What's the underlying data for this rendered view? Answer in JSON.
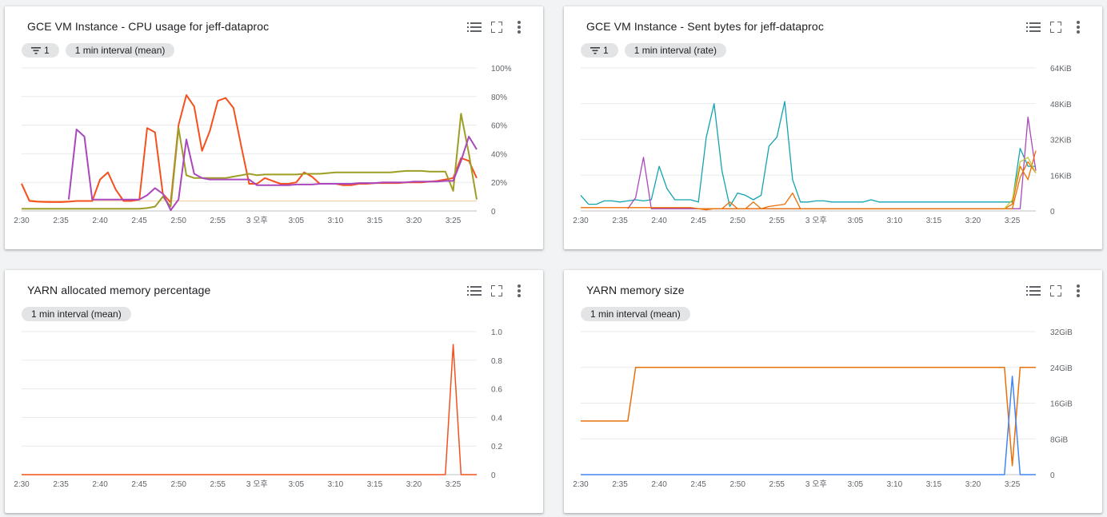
{
  "chart_data": [
    {
      "type": "line",
      "title": "GCE VM Instance - CPU usage for jeff-dataproc",
      "chips": [
        {
          "kind": "filter",
          "label": "1",
          "icon": "filter-icon"
        },
        {
          "kind": "interval",
          "label": "1 min interval (mean)"
        }
      ],
      "x_ticks": [
        "2:30",
        "2:35",
        "2:40",
        "2:45",
        "2:50",
        "2:55",
        "3 오후",
        "3:05",
        "3:10",
        "3:15",
        "3:20",
        "3:25"
      ],
      "y_ticks": [
        "0",
        "20%",
        "40%",
        "60%",
        "80%",
        "100%"
      ],
      "ylim": [
        0,
        100
      ],
      "x_unit": "minutes after 2:30",
      "grid": true,
      "series": [
        {
          "color": "#f5cfa7",
          "width": 1,
          "x": [
            30,
            31,
            32,
            33,
            34,
            35,
            36,
            37,
            38,
            39,
            40,
            41,
            42,
            43,
            44,
            45,
            46,
            47,
            48,
            49,
            50,
            51,
            52,
            53,
            54,
            55,
            56,
            57,
            58,
            59,
            60,
            61,
            62,
            63,
            64,
            65,
            66,
            67,
            68,
            69,
            70,
            71,
            72,
            73,
            74,
            75,
            76,
            77,
            78,
            79,
            80,
            81,
            82,
            83,
            84,
            85,
            86,
            87,
            88
          ],
          "y": [
            20,
            8,
            7,
            7,
            7,
            7,
            7,
            7,
            7,
            7,
            7,
            7,
            7,
            7,
            7,
            7,
            7,
            7,
            7,
            7,
            7,
            7,
            7,
            7,
            7,
            7,
            7,
            7,
            7,
            7,
            7,
            7,
            7,
            7,
            7,
            7,
            7,
            7,
            7,
            7,
            7,
            7,
            7,
            7,
            7,
            7,
            7,
            7,
            7,
            7,
            7,
            7,
            7,
            7,
            7,
            7,
            7,
            7,
            7
          ],
          "note": "faint"
        },
        {
          "color": "#f4511e",
          "width": 2,
          "x": [
            30,
            31,
            32,
            33,
            34,
            35,
            36,
            37,
            38,
            39,
            40,
            41,
            42,
            43,
            44,
            45,
            46,
            47,
            48,
            49,
            50,
            51,
            52,
            53,
            54,
            55,
            56,
            57,
            58,
            59,
            60,
            61,
            62,
            63,
            64,
            65,
            66,
            67,
            68,
            69,
            70,
            71,
            72,
            73,
            74,
            75,
            76,
            77,
            78,
            79,
            80,
            81,
            82,
            83,
            84,
            85,
            86,
            87,
            88
          ],
          "y": [
            19,
            7,
            6.5,
            6.3,
            6.2,
            6.2,
            6.5,
            7,
            7,
            7,
            22,
            27,
            15,
            7,
            7,
            8,
            58,
            55,
            12,
            6,
            60,
            81,
            73,
            42,
            56,
            77,
            79,
            72,
            45,
            19,
            19,
            23,
            21,
            19,
            19,
            20,
            27,
            24,
            19,
            19,
            19,
            18,
            18,
            19,
            19,
            19.5,
            19.5,
            19.5,
            19.5,
            20,
            20,
            20,
            20.5,
            21,
            22,
            23,
            37,
            35,
            23
          ]
        },
        {
          "color": "#9e9d24",
          "width": 2,
          "x": [
            30,
            31,
            32,
            33,
            34,
            35,
            36,
            37,
            38,
            39,
            40,
            41,
            42,
            43,
            44,
            45,
            46,
            47,
            48,
            49,
            50,
            51,
            52,
            53,
            54,
            55,
            56,
            57,
            58,
            59,
            60,
            61,
            62,
            63,
            64,
            65,
            66,
            67,
            68,
            69,
            70,
            71,
            72,
            73,
            74,
            75,
            76,
            77,
            78,
            79,
            80,
            81,
            82,
            83,
            84,
            85,
            86,
            87,
            88
          ],
          "y": [
            1.5,
            1.5,
            1.5,
            1.5,
            1.5,
            1.5,
            1.5,
            1.5,
            1.5,
            1.5,
            1.5,
            1.5,
            1.5,
            1.5,
            1.5,
            1.5,
            2,
            3,
            10,
            3,
            58,
            25,
            23,
            23,
            23,
            23,
            23,
            24,
            25,
            26,
            25,
            25.5,
            25.5,
            25.5,
            25.5,
            25.5,
            26,
            26,
            26,
            26.5,
            27,
            27,
            27,
            27,
            27,
            27,
            27,
            27,
            27.5,
            28,
            28,
            28,
            27.5,
            27.5,
            27.5,
            14,
            68,
            40,
            8
          ]
        },
        {
          "color": "#ab47bc",
          "width": 2,
          "x": [
            36,
            37,
            38,
            39,
            40,
            41,
            42,
            43,
            44,
            45,
            46,
            47,
            48,
            49,
            50,
            51,
            52,
            53,
            54,
            55,
            56,
            57,
            58,
            59,
            60,
            61,
            62,
            63,
            64,
            65,
            66,
            67,
            68,
            69,
            70,
            71,
            72,
            73,
            74,
            75,
            76,
            77,
            78,
            79,
            80,
            81,
            82,
            83,
            84,
            85,
            86,
            87,
            88
          ],
          "y": [
            8,
            57,
            52,
            8,
            8,
            8,
            8,
            8,
            8,
            8,
            11,
            16,
            12,
            0.5,
            8,
            50,
            26,
            23,
            22,
            22,
            22,
            22,
            22,
            22,
            18,
            18,
            18,
            18,
            18,
            18.5,
            18.5,
            18.5,
            19,
            19,
            19,
            19,
            19,
            19.5,
            19.5,
            19.5,
            20,
            20,
            20,
            20,
            20.5,
            20.5,
            20.5,
            20.5,
            21,
            21,
            35,
            52,
            43
          ]
        }
      ]
    },
    {
      "type": "line",
      "title": "GCE VM Instance - Sent bytes for jeff-dataproc",
      "chips": [
        {
          "kind": "filter",
          "label": "1",
          "icon": "filter-icon"
        },
        {
          "kind": "interval",
          "label": "1 min interval (rate)"
        }
      ],
      "x_ticks": [
        "2:30",
        "2:35",
        "2:40",
        "2:45",
        "2:50",
        "2:55",
        "3 오후",
        "3:05",
        "3:10",
        "3:15",
        "3:20",
        "3:25"
      ],
      "y_ticks": [
        "0",
        "16KiB",
        "32KiB",
        "48KiB",
        "64KiB"
      ],
      "ylim": [
        0,
        64
      ],
      "x_unit": "minutes after 2:30",
      "grid": true,
      "series": [
        {
          "color": "#12a4af",
          "width": 1.3,
          "x": [
            30,
            31,
            32,
            33,
            34,
            35,
            36,
            37,
            38,
            39,
            40,
            41,
            42,
            43,
            44,
            45,
            46,
            47,
            48,
            49,
            50,
            51,
            52,
            53,
            54,
            55,
            56,
            57,
            58,
            59,
            60,
            61,
            62,
            63,
            64,
            65,
            66,
            67,
            68,
            69,
            70,
            71,
            72,
            73,
            74,
            75,
            76,
            77,
            78,
            79,
            80,
            81,
            82,
            83,
            84,
            85,
            86,
            87,
            88
          ],
          "y": [
            7,
            3,
            3,
            4.5,
            4.5,
            4,
            4.5,
            5,
            4.5,
            5,
            20,
            10,
            5,
            5,
            5,
            4,
            33,
            48,
            18,
            2,
            8,
            7,
            5,
            7,
            29,
            33,
            49,
            14,
            4,
            4,
            4.5,
            4.5,
            4,
            4,
            4,
            4,
            4,
            5,
            4,
            4,
            4,
            4,
            4,
            4,
            4,
            4,
            4,
            4,
            4,
            4,
            4,
            4,
            4,
            4,
            4,
            4,
            28,
            20,
            20
          ]
        },
        {
          "color": "#ab47bc",
          "width": 1.3,
          "x": [
            36,
            37,
            38,
            39,
            40,
            41,
            42,
            43,
            44,
            45,
            46,
            47,
            48,
            49,
            50,
            51,
            52,
            53,
            54,
            55,
            56,
            57,
            58,
            59,
            60,
            61,
            62,
            63,
            64,
            65,
            66,
            67,
            68,
            69,
            70,
            71,
            72,
            73,
            74,
            75,
            76,
            77,
            78,
            79,
            80,
            81,
            82,
            83,
            84,
            85,
            86,
            87,
            88
          ],
          "y": [
            1,
            6,
            24,
            1,
            1,
            1,
            1,
            1,
            1,
            1,
            1,
            1,
            1,
            1,
            1,
            1,
            1,
            1,
            1,
            1,
            1,
            1,
            1,
            1,
            1,
            1,
            1,
            1,
            1,
            1,
            1,
            1,
            1,
            1,
            1,
            1,
            1,
            1,
            1,
            1,
            1,
            1,
            1,
            1,
            1,
            1,
            1,
            1,
            1,
            1,
            1,
            42,
            18
          ]
        },
        {
          "color": "#ef6c00",
          "width": 1.3,
          "x": [
            30,
            31,
            32,
            33,
            34,
            35,
            36,
            37,
            38,
            39,
            40,
            41,
            42,
            43,
            44,
            45,
            46,
            47,
            48,
            49,
            50,
            51,
            52,
            53,
            54,
            55,
            56,
            57,
            58,
            59,
            60,
            61,
            62,
            63,
            64,
            65,
            66,
            67,
            68,
            69,
            70,
            71,
            72,
            73,
            74,
            75,
            76,
            77,
            78,
            79,
            80,
            81,
            82,
            83,
            84,
            85,
            86,
            87,
            88
          ],
          "y": [
            1.5,
            1.5,
            1.5,
            1.5,
            1.5,
            1.5,
            1.5,
            1.5,
            1.5,
            1.5,
            1.5,
            1.5,
            1.5,
            1.5,
            1.5,
            1,
            0.5,
            1,
            1,
            4,
            1,
            1,
            1,
            1,
            2,
            2.5,
            3,
            8,
            1,
            1,
            1,
            1,
            1,
            1,
            1,
            1,
            1,
            1,
            1,
            1,
            1,
            1,
            1,
            1,
            1,
            1,
            1,
            1,
            1,
            1,
            1,
            1,
            1,
            1,
            1,
            3,
            20,
            14,
            27
          ]
        },
        {
          "color": "#e8710a",
          "width": 1.3,
          "x": [
            45,
            46,
            47,
            48,
            49,
            50,
            51,
            52,
            53,
            54,
            55,
            56,
            57,
            58,
            59,
            60,
            61,
            62,
            63,
            64,
            65,
            66,
            67,
            68,
            69,
            70,
            71,
            72,
            73,
            74,
            75,
            76,
            77,
            78,
            79,
            80,
            81,
            82,
            83,
            84,
            85,
            86,
            87,
            88
          ],
          "y": [
            1,
            1,
            1,
            1,
            1,
            1,
            1,
            4,
            1,
            1,
            1,
            1,
            1,
            1,
            1,
            1,
            1,
            1,
            1,
            1,
            1,
            1,
            1,
            1,
            1,
            1,
            1,
            1,
            1,
            1,
            1,
            1,
            1,
            1,
            1,
            1,
            1,
            1,
            1,
            1,
            1,
            15,
            22,
            17
          ]
        },
        {
          "color": "#c1ca33",
          "width": 1.3,
          "x": [
            84,
            85,
            86,
            87,
            88
          ],
          "y": [
            1,
            5,
            22,
            24,
            17
          ]
        }
      ]
    },
    {
      "type": "line",
      "title": "YARN allocated memory percentage",
      "chips": [
        {
          "kind": "interval",
          "label": "1 min interval (mean)"
        }
      ],
      "x_ticks": [
        "2:30",
        "2:35",
        "2:40",
        "2:45",
        "2:50",
        "2:55",
        "3 오후",
        "3:05",
        "3:10",
        "3:15",
        "3:20",
        "3:25"
      ],
      "y_ticks": [
        "0",
        "0.2",
        "0.4",
        "0.6",
        "0.8",
        "1.0"
      ],
      "ylim": [
        0,
        1
      ],
      "x_unit": "minutes after 2:30",
      "grid": true,
      "series": [
        {
          "color": "#f4511e",
          "width": 1.5,
          "x": [
            30,
            83,
            84,
            85,
            86,
            87,
            88
          ],
          "y": [
            0,
            0,
            0,
            0.91,
            0,
            0,
            0
          ]
        }
      ]
    },
    {
      "type": "line",
      "title": "YARN memory size",
      "chips": [
        {
          "kind": "interval",
          "label": "1 min interval (mean)"
        }
      ],
      "x_ticks": [
        "2:30",
        "2:35",
        "2:40",
        "2:45",
        "2:50",
        "2:55",
        "3 오후",
        "3:05",
        "3:10",
        "3:15",
        "3:20",
        "3:25"
      ],
      "y_ticks": [
        "0",
        "8GiB",
        "16GiB",
        "24GiB",
        "32GiB"
      ],
      "ylim": [
        0,
        32
      ],
      "x_unit": "minutes after 2:30",
      "grid": true,
      "series": [
        {
          "color": "#e8710a",
          "width": 1.5,
          "x": [
            30,
            36,
            37,
            83,
            84,
            85,
            86,
            87,
            88
          ],
          "y": [
            12,
            12,
            24,
            24,
            24,
            2,
            24,
            24,
            24
          ]
        },
        {
          "color": "#4285f4",
          "width": 1.5,
          "x": [
            30,
            83,
            84,
            85,
            86,
            87,
            88
          ],
          "y": [
            0,
            0,
            0,
            22,
            0,
            0,
            0
          ]
        }
      ]
    }
  ],
  "toolbar_icons": [
    "legend-list-icon",
    "fullscreen-icon",
    "more-vert-icon"
  ]
}
